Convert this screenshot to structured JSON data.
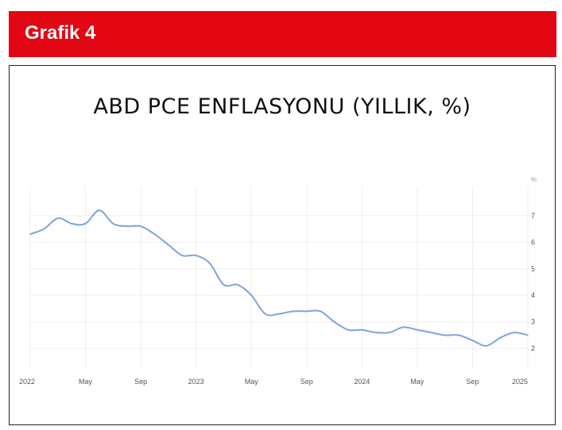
{
  "banner": {
    "title": "Grafik 4"
  },
  "colors": {
    "banner": "#e30613",
    "line": "#7fa3dc",
    "grid": "#eeeeee"
  },
  "chart_data": {
    "type": "line",
    "title": "ABD PCE ENFLASYONU (YILLIK, %)",
    "unit": "%",
    "xlabel": "",
    "ylabel": "",
    "x_tick_labels": [
      "2022",
      "May",
      "Sep",
      "2023",
      "May",
      "Sep",
      "2024",
      "May",
      "Sep",
      "2025"
    ],
    "y_ticks": [
      2,
      3,
      4,
      5,
      6,
      7
    ],
    "ylim": [
      1.2,
      7.8
    ],
    "y_axis_position": "right",
    "grid": true,
    "legend": "none",
    "series": [
      {
        "x": [
          "2022-01",
          "2022-02",
          "2022-03",
          "2022-04",
          "2022-05",
          "2022-06",
          "2022-07",
          "2022-08",
          "2022-09",
          "2022-10",
          "2022-11",
          "2022-12",
          "2023-01",
          "2023-02",
          "2023-03",
          "2023-04",
          "2023-05",
          "2023-06",
          "2023-07",
          "2023-08",
          "2023-09",
          "2023-10",
          "2023-11",
          "2023-12",
          "2024-01",
          "2024-02",
          "2024-03",
          "2024-04",
          "2024-05",
          "2024-06",
          "2024-07",
          "2024-08",
          "2024-09",
          "2024-10",
          "2024-11",
          "2024-12",
          "2025-01"
        ],
        "values": [
          6.3,
          6.5,
          6.9,
          6.7,
          6.7,
          7.2,
          6.7,
          6.6,
          6.6,
          6.3,
          5.9,
          5.5,
          5.5,
          5.2,
          4.4,
          4.4,
          4.0,
          3.3,
          3.3,
          3.4,
          3.4,
          3.4,
          3.0,
          2.7,
          2.7,
          2.6,
          2.6,
          2.8,
          2.7,
          2.6,
          2.5,
          2.5,
          2.3,
          2.1,
          2.4,
          2.6,
          2.5
        ]
      }
    ]
  }
}
